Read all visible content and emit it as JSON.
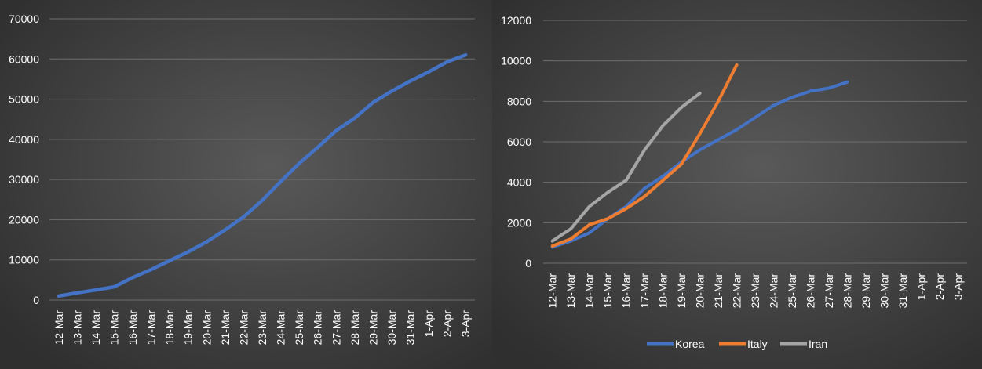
{
  "chart_data": [
    {
      "type": "line",
      "title": "",
      "xlabel": "",
      "ylabel": "",
      "categories": [
        "12-Mar",
        "13-Mar",
        "14-Mar",
        "15-Mar",
        "16-Mar",
        "17-Mar",
        "18-Mar",
        "19-Mar",
        "20-Mar",
        "21-Mar",
        "22-Mar",
        "23-Mar",
        "24-Mar",
        "25-Mar",
        "26-Mar",
        "27-Mar",
        "28-Mar",
        "29-Mar",
        "30-Mar",
        "31-Mar",
        "1-Apr",
        "2-Apr",
        "3-Apr"
      ],
      "ylim": [
        0,
        70000
      ],
      "yticks": [
        0,
        10000,
        20000,
        30000,
        40000,
        50000,
        60000,
        70000
      ],
      "grid": true,
      "legend": "none",
      "series": [
        {
          "color": "#4472c4",
          "values": [
            1000,
            1800,
            2500,
            3300,
            5600,
            7600,
            9800,
            12000,
            14500,
            17500,
            20700,
            24800,
            29500,
            34000,
            38000,
            42200,
            45300,
            49200,
            52000,
            54500,
            56800,
            59300,
            61000
          ]
        }
      ]
    },
    {
      "type": "line",
      "title": "",
      "xlabel": "",
      "ylabel": "",
      "categories": [
        "12-Mar",
        "13-Mar",
        "14-Mar",
        "15-Mar",
        "16-Mar",
        "17-Mar",
        "18-Mar",
        "19-Mar",
        "20-Mar",
        "21-Mar",
        "22-Mar",
        "23-Mar",
        "24-Mar",
        "25-Mar",
        "26-Mar",
        "27-Mar",
        "28-Mar",
        "29-Mar",
        "30-Mar",
        "31-Mar",
        "1-Apr",
        "2-Apr",
        "3-Apr"
      ],
      "ylim": [
        0,
        12000
      ],
      "yticks": [
        0,
        2000,
        4000,
        6000,
        8000,
        10000,
        12000
      ],
      "grid": true,
      "legend": "bottom",
      "series": [
        {
          "name": "Korea",
          "color": "#4472c4",
          "values": [
            800,
            1100,
            1500,
            2200,
            2800,
            3700,
            4300,
            5000,
            5600,
            6100,
            6600,
            7200,
            7800,
            8200,
            8500,
            8650,
            8950,
            null,
            null,
            null,
            null,
            null,
            null
          ]
        },
        {
          "name": "Italy",
          "color": "#ed7d31",
          "values": [
            850,
            1200,
            1900,
            2200,
            2700,
            3300,
            4100,
            4900,
            6400,
            8000,
            9800,
            null,
            null,
            null,
            null,
            null,
            null,
            null,
            null,
            null,
            null,
            null,
            null
          ]
        },
        {
          "name": "Iran",
          "color": "#a5a5a5",
          "values": [
            1100,
            1700,
            2800,
            3500,
            4100,
            5600,
            6800,
            7700,
            8400,
            null,
            null,
            null,
            null,
            null,
            null,
            null,
            null,
            null,
            null,
            null,
            null,
            null,
            null
          ]
        }
      ]
    }
  ]
}
